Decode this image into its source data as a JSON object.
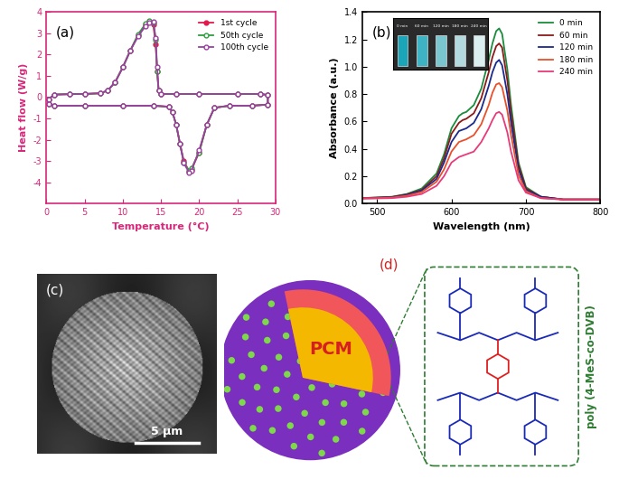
{
  "chart_data": [
    {
      "type": "line",
      "annotations": [
        "(a)"
      ],
      "x_label": "Temperature (°C)",
      "y_label": "Heat flow (W/g)",
      "x": [
        0.3,
        1,
        3,
        5,
        7,
        8,
        9,
        10,
        11,
        12,
        13,
        13.5,
        14,
        14.3,
        14.5,
        14.7,
        15,
        17,
        20,
        25,
        28,
        29,
        29,
        27,
        24,
        22,
        21,
        20,
        19,
        18.7,
        18,
        17.5,
        17,
        16.5,
        16,
        14,
        10,
        5,
        1,
        0.3
      ],
      "series": [
        {
          "name": "1st cycle",
          "color": "#e3194b",
          "marker": "circle",
          "line_style": "solid",
          "values": [
            -0.1,
            0.12,
            0.14,
            0.15,
            0.18,
            0.3,
            0.7,
            1.4,
            2.2,
            2.9,
            3.4,
            3.55,
            3.4,
            2.5,
            1.2,
            0.3,
            0.15,
            0.15,
            0.15,
            0.15,
            0.15,
            0.1,
            -0.35,
            -0.4,
            -0.4,
            -0.5,
            -1.3,
            -2.6,
            -3.4,
            -3.5,
            -3.0,
            -2.2,
            -1.3,
            -0.7,
            -0.45,
            -0.4,
            -0.4,
            -0.4,
            -0.4,
            -0.3
          ]
        },
        {
          "name": "50th cycle",
          "color": "#2e9e3e",
          "marker": "open_circle",
          "line_style": "solid",
          "values": [
            -0.1,
            0.12,
            0.14,
            0.15,
            0.18,
            0.3,
            0.7,
            1.4,
            2.2,
            2.95,
            3.45,
            3.6,
            3.5,
            2.7,
            1.2,
            0.3,
            0.15,
            0.15,
            0.15,
            0.15,
            0.15,
            0.1,
            -0.35,
            -0.4,
            -0.4,
            -0.5,
            -1.3,
            -2.6,
            -3.35,
            -3.45,
            -3.1,
            -2.2,
            -1.3,
            -0.7,
            -0.45,
            -0.4,
            -0.4,
            -0.4,
            -0.4,
            -0.3
          ]
        },
        {
          "name": "100th cycle",
          "color": "#9b3fa0",
          "marker": "open_circle",
          "line_style": "solid",
          "values": [
            -0.1,
            0.12,
            0.14,
            0.15,
            0.18,
            0.3,
            0.7,
            1.4,
            2.2,
            2.85,
            3.35,
            3.5,
            3.55,
            2.8,
            1.4,
            0.3,
            0.15,
            0.15,
            0.15,
            0.15,
            0.15,
            0.1,
            -0.35,
            -0.4,
            -0.4,
            -0.5,
            -1.3,
            -2.5,
            -3.45,
            -3.55,
            -3.1,
            -2.2,
            -1.3,
            -0.7,
            -0.45,
            -0.4,
            -0.4,
            -0.4,
            -0.4,
            -0.3
          ]
        }
      ],
      "xlim": [
        0,
        30
      ],
      "xticks": [
        0,
        5,
        10,
        15,
        20,
        25,
        30
      ],
      "ylim": [
        -5,
        4
      ],
      "yticks": [
        -4,
        -3,
        -2,
        -1,
        0,
        1,
        2,
        3,
        4
      ],
      "legend": "upper right",
      "color": "#d6287a"
    },
    {
      "type": "line",
      "annotations": [
        "(b)"
      ],
      "x_label": "Wavelength (nm)",
      "y_label": "Absorbance (a.u.)",
      "x": [
        480,
        500,
        520,
        540,
        560,
        580,
        590,
        600,
        610,
        615,
        620,
        630,
        640,
        650,
        655,
        660,
        664,
        668,
        675,
        680,
        690,
        700,
        720,
        750,
        800
      ],
      "series": [
        {
          "name": "0 min",
          "color": "#1a8c3c",
          "values": [
            0.04,
            0.045,
            0.05,
            0.07,
            0.11,
            0.22,
            0.36,
            0.55,
            0.64,
            0.66,
            0.67,
            0.72,
            0.84,
            1.05,
            1.17,
            1.26,
            1.28,
            1.24,
            0.98,
            0.72,
            0.3,
            0.12,
            0.05,
            0.03,
            0.03
          ]
        },
        {
          "name": "60 min",
          "color": "#8b1a1a",
          "values": [
            0.04,
            0.044,
            0.048,
            0.067,
            0.1,
            0.2,
            0.33,
            0.51,
            0.59,
            0.61,
            0.62,
            0.66,
            0.77,
            0.96,
            1.07,
            1.15,
            1.17,
            1.14,
            0.9,
            0.66,
            0.28,
            0.11,
            0.05,
            0.03,
            0.03
          ]
        },
        {
          "name": "120 min",
          "color": "#1a2a8c",
          "values": [
            0.04,
            0.042,
            0.046,
            0.063,
            0.095,
            0.18,
            0.3,
            0.45,
            0.53,
            0.54,
            0.55,
            0.59,
            0.69,
            0.86,
            0.96,
            1.03,
            1.05,
            1.01,
            0.8,
            0.59,
            0.25,
            0.1,
            0.05,
            0.03,
            0.03
          ]
        },
        {
          "name": "180 min",
          "color": "#e8502a",
          "values": [
            0.04,
            0.04,
            0.044,
            0.057,
            0.084,
            0.16,
            0.25,
            0.38,
            0.45,
            0.46,
            0.47,
            0.5,
            0.58,
            0.72,
            0.81,
            0.87,
            0.88,
            0.85,
            0.68,
            0.5,
            0.21,
            0.09,
            0.04,
            0.03,
            0.03
          ]
        },
        {
          "name": "240 min",
          "color": "#e83a7a",
          "values": [
            0.035,
            0.038,
            0.04,
            0.05,
            0.07,
            0.13,
            0.2,
            0.3,
            0.34,
            0.35,
            0.36,
            0.38,
            0.45,
            0.55,
            0.61,
            0.66,
            0.67,
            0.65,
            0.52,
            0.38,
            0.17,
            0.08,
            0.04,
            0.03,
            0.03
          ]
        }
      ],
      "xlim": [
        480,
        800
      ],
      "xticks": [
        500,
        600,
        700,
        800
      ],
      "ylim": [
        0,
        1.4
      ],
      "yticks": [
        {
          "value": 0,
          "label": "0.0"
        },
        {
          "value": 0.2,
          "label": "0.2"
        },
        {
          "value": 0.4,
          "label": "0.4"
        },
        {
          "value": 0.6,
          "label": "0.6"
        },
        {
          "value": 0.8,
          "label": "0.8"
        },
        {
          "value": 1.0,
          "label": "1.0"
        },
        {
          "value": 1.2,
          "label": "1.2"
        },
        {
          "value": 1.4,
          "label": "1.4"
        }
      ],
      "legend": "upper right"
    }
  ],
  "image": {
    "label": "(c)",
    "scale_bar": "5 μm"
  },
  "diagram": {
    "label": "(d)",
    "core": "PCM",
    "shell": "poly (4-MeS-co-DVB)"
  }
}
